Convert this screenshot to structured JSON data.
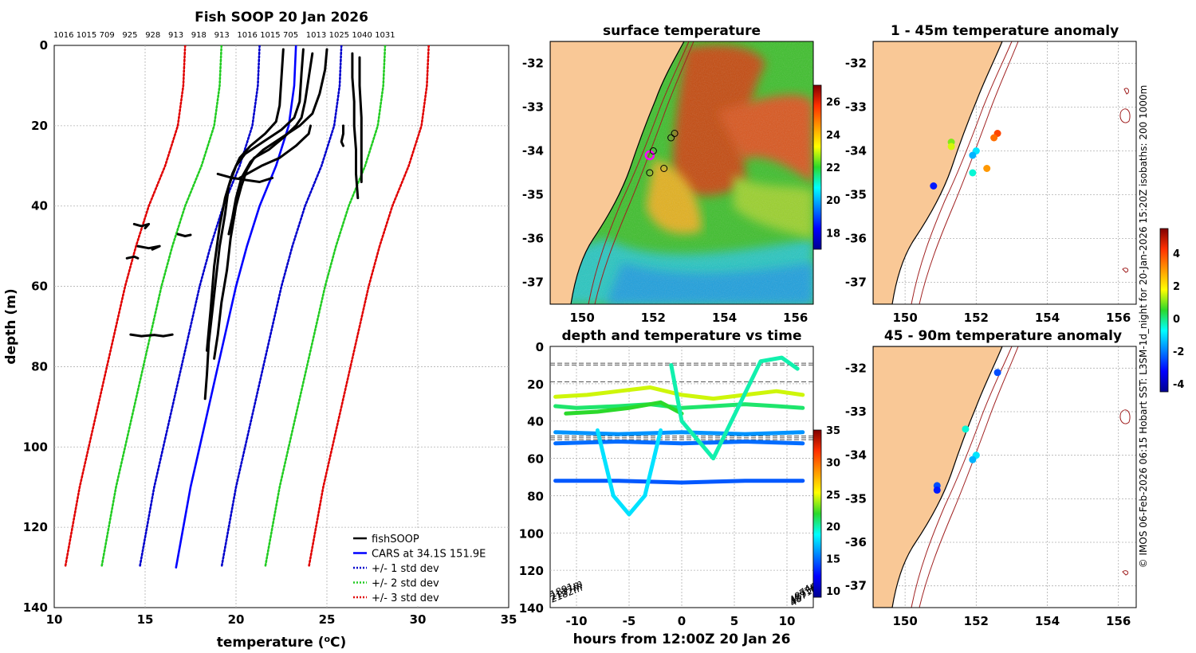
{
  "figure_credit": "© IMOS 06-Feb-2026 06:15 Hobart SST: L3SM-1d_night for 20-Jan-2026 15:20Z isobaths: 200  1000m",
  "colors": {
    "land": "#f9c896",
    "fishsoop": "#000000",
    "cars": "#0000ff",
    "std1": "#0000cc",
    "std2": "#22cc22",
    "std3": "#e00000",
    "isobath": "#a02020",
    "grid": "#b0b0b0"
  },
  "chart_data": [
    {
      "id": "profile",
      "type": "line",
      "title": "Fish SOOP 20 Jan 2026",
      "top_labels": [
        "1016",
        "1015",
        "709",
        "925",
        "928",
        "913",
        "918",
        "913",
        "1016",
        "1015",
        "705",
        "1013",
        "1025",
        "1040",
        "1031"
      ],
      "xlabel": "temperature (°C)",
      "xlabel_main": "temperature (",
      "xlabel_sup": "o",
      "xlabel_end": "C)",
      "ylabel": "depth (m)",
      "xlim": [
        10,
        35
      ],
      "ylim": [
        140,
        0
      ],
      "xticks": [
        10,
        15,
        20,
        25,
        30,
        35
      ],
      "yticks": [
        0,
        20,
        40,
        60,
        80,
        100,
        120,
        140
      ],
      "legend_position": "bottom-right",
      "legend": [
        {
          "label": "fishSOOP",
          "style": "solid-black"
        },
        {
          "label": "CARS at 34.1S 151.9E",
          "style": "solid-blue"
        },
        {
          "label": "+/- 1 std dev",
          "style": "dotted-blue"
        },
        {
          "label": "+/- 2 std dev",
          "style": "dotted-green"
        },
        {
          "label": "+/- 3 std dev",
          "style": "dotted-red"
        }
      ],
      "cars_mean": {
        "depth": [
          0,
          10,
          20,
          30,
          40,
          50,
          60,
          70,
          80,
          90,
          100,
          110,
          120,
          130
        ],
        "temp": [
          23.3,
          23.2,
          22.9,
          22.2,
          21.3,
          20.6,
          20.0,
          19.5,
          19.0,
          18.5,
          18.0,
          17.5,
          17.1,
          16.7
        ]
      },
      "std_offsets": {
        "sd1": {
          "minus": 2.0,
          "plus": 2.5
        },
        "sd2": {
          "minus": 4.1,
          "plus": 4.9
        },
        "sd3": {
          "minus": 6.1,
          "plus": 7.3
        }
      },
      "series": [
        {
          "name": "profile-a",
          "x": [
            24.2,
            24.0,
            23.8,
            23.6,
            23.3,
            22.6,
            21.8,
            21.0,
            20.6,
            20.3,
            20.0,
            19.7,
            19.5,
            19.2,
            19.0,
            18.8
          ],
          "y": [
            2,
            8,
            14,
            18,
            20,
            23,
            26,
            28,
            31,
            35,
            40,
            48,
            56,
            64,
            72,
            78
          ]
        },
        {
          "name": "profile-b",
          "x": [
            23.7,
            23.6,
            23.5,
            23.2,
            22.5,
            21.5,
            20.5,
            20.0,
            19.6,
            19.4,
            19.1,
            18.9,
            18.7,
            18.5,
            18.4,
            18.3
          ],
          "y": [
            1,
            7,
            14,
            18,
            21,
            24,
            27,
            30,
            35,
            42,
            50,
            58,
            66,
            74,
            82,
            88
          ]
        },
        {
          "name": "profile-c",
          "x": [
            22.6,
            22.5,
            22.4,
            22.2,
            21.6,
            20.8,
            20.2,
            19.8,
            19.4,
            19.1,
            18.8,
            18.6,
            18.4
          ],
          "y": [
            1,
            8,
            15,
            19,
            22,
            25,
            28,
            32,
            38,
            45,
            55,
            66,
            76
          ]
        },
        {
          "name": "profile-d",
          "x": [
            25.0,
            24.9,
            24.6,
            24.2,
            23.5,
            22.5,
            21.5,
            20.8,
            20.3,
            20.0,
            19.8,
            19.6
          ],
          "y": [
            1,
            6,
            12,
            17,
            20,
            23,
            26,
            29,
            33,
            38,
            43,
            47
          ]
        },
        {
          "name": "profile-e",
          "x": [
            20.2,
            20.6,
            21.4,
            22.4,
            23.3,
            24.0,
            24.1
          ],
          "y": [
            33,
            32,
            30,
            28,
            25,
            22,
            20
          ]
        },
        {
          "name": "profile-f",
          "x": [
            19.0,
            19.8,
            20.5,
            21.3,
            22.0
          ],
          "y": [
            32,
            33,
            33.5,
            34,
            33
          ]
        },
        {
          "name": "profile-g",
          "x": [
            26.4,
            26.4,
            26.5,
            26.5,
            26.6,
            26.6,
            26.7
          ],
          "y": [
            2,
            8,
            14,
            20,
            26,
            32,
            38
          ]
        },
        {
          "name": "profile-h",
          "x": [
            26.8,
            26.8,
            26.9,
            26.9,
            26.9
          ],
          "y": [
            3,
            10,
            18,
            26,
            34
          ]
        },
        {
          "name": "profile-i",
          "x": [
            25.9,
            25.9,
            25.8,
            25.9
          ],
          "y": [
            20,
            22,
            24,
            25
          ]
        },
        {
          "name": "blob-1",
          "x": [
            14.4,
            14.8,
            15.2,
            15.0
          ],
          "y": [
            44.5,
            45,
            44.5,
            45.5
          ]
        },
        {
          "name": "blob-2",
          "x": [
            14.6,
            15.2,
            15.8,
            15.4
          ],
          "y": [
            50,
            50.5,
            50,
            50.8
          ]
        },
        {
          "name": "blob-3",
          "x": [
            14.0,
            14.4,
            14.6
          ],
          "y": [
            53,
            52.6,
            53
          ]
        },
        {
          "name": "blob-4",
          "x": [
            16.8,
            17.2,
            17.5
          ],
          "y": [
            47,
            47.5,
            47.2
          ]
        },
        {
          "name": "blob-5",
          "x": [
            14.2,
            14.8,
            15.5,
            16.0,
            16.5
          ],
          "y": [
            72,
            72.4,
            72.1,
            72.4,
            72
          ]
        }
      ]
    },
    {
      "id": "sst-map",
      "type": "heatmap",
      "title": "surface temperature",
      "xticks": [
        150,
        152,
        154,
        156
      ],
      "yticks": [
        -32,
        -33,
        -34,
        -35,
        -36,
        -37
      ],
      "xlim": [
        149.1,
        156.5
      ],
      "ylim": [
        -37.5,
        -31.5
      ],
      "colorbar_ticks": [
        26,
        24,
        22,
        20,
        18
      ],
      "colorbar_range": [
        17,
        27
      ],
      "warm_core_center": [
        153.6,
        -33.6
      ],
      "cold_band_lat": -36.9,
      "station_markers": [
        {
          "lon": 151.9,
          "lat": -34.1,
          "ring": "magenta"
        },
        {
          "lon": 152.0,
          "lat": -34.0,
          "ring": "black"
        },
        {
          "lon": 151.9,
          "lat": -34.5,
          "ring": "black"
        },
        {
          "lon": 152.3,
          "lat": -34.4,
          "ring": "black"
        },
        {
          "lon": 152.6,
          "lat": -33.6,
          "ring": "black"
        },
        {
          "lon": 152.5,
          "lat": -33.7,
          "ring": "black"
        }
      ]
    },
    {
      "id": "depth-time",
      "type": "scatter",
      "title": "depth and temperature vs time",
      "xlabel": "hours from 12:00Z 20 Jan 26",
      "xlim": [
        -12.5,
        12.5
      ],
      "ylim": [
        140,
        0
      ],
      "xticks": [
        -10,
        -5,
        0,
        5,
        10
      ],
      "yticks": [
        0,
        20,
        40,
        60,
        80,
        100,
        120,
        140
      ],
      "colorbar_ticks": [
        35,
        30,
        25,
        20,
        15,
        10
      ],
      "colorbar_range": [
        9,
        35
      ],
      "reference_depths": [
        9,
        10,
        19,
        48,
        49,
        50
      ],
      "corner_labels": [
        "2182m",
        "2137m",
        "1891m",
        "4874m",
        "4893m",
        "4871m"
      ],
      "tracks": [
        {
          "name": "track-shallow",
          "temp": 24.5,
          "hours": [
            -12,
            -9,
            -6,
            -3,
            0,
            3,
            6,
            9,
            11.5
          ],
          "depth": [
            27,
            26,
            24,
            22,
            26,
            28,
            26,
            24,
            26
          ]
        },
        {
          "name": "track-mixed",
          "temp": 21,
          "hours": [
            -12,
            -10,
            -6,
            -3,
            0,
            3,
            6,
            9,
            11.5
          ],
          "depth": [
            32,
            33,
            32,
            31,
            33,
            32,
            31,
            32,
            33
          ]
        },
        {
          "name": "track-thermo",
          "temp": 22,
          "hours": [
            -11,
            -8,
            -5,
            -2,
            0
          ],
          "depth": [
            36,
            35,
            33,
            30,
            36
          ]
        },
        {
          "name": "track-40m",
          "temp": 16,
          "hours": [
            -12,
            -6,
            0,
            6,
            11.5
          ],
          "depth": [
            46,
            47,
            46,
            47,
            46
          ]
        },
        {
          "name": "track-50m",
          "temp": 15,
          "hours": [
            -12,
            -6,
            0,
            6,
            11.5
          ],
          "depth": [
            52,
            51,
            52,
            51,
            52
          ]
        },
        {
          "name": "track-72m",
          "temp": 14.5,
          "hours": [
            -12,
            -6,
            0,
            6,
            11.5
          ],
          "depth": [
            72,
            72,
            73,
            72,
            72
          ]
        },
        {
          "name": "track-dip",
          "temp": 18,
          "hours": [
            -8,
            -6.5,
            -5,
            -3.5,
            -2
          ],
          "depth": [
            45,
            80,
            90,
            80,
            45
          ]
        },
        {
          "name": "track-spikes",
          "temp": 20,
          "hours": [
            -1,
            0,
            3,
            7.5,
            9.5,
            11
          ],
          "depth": [
            10,
            40,
            60,
            8,
            6,
            12
          ]
        }
      ]
    },
    {
      "id": "anomaly-1-45",
      "type": "scatter",
      "title": "1 - 45m temperature anomaly",
      "xticks": [
        150,
        152,
        154,
        156
      ],
      "yticks": [
        -32,
        -33,
        -34,
        -35,
        -36,
        -37
      ],
      "xlim": [
        149.1,
        156.5
      ],
      "ylim": [
        -37.5,
        -31.5
      ],
      "points": [
        {
          "lon": 152.6,
          "lat": -33.6,
          "anomaly": 4.0
        },
        {
          "lon": 152.5,
          "lat": -33.7,
          "anomaly": 3.5
        },
        {
          "lon": 151.3,
          "lat": -33.8,
          "anomaly": 1.0
        },
        {
          "lon": 151.3,
          "lat": -33.9,
          "anomaly": 1.5
        },
        {
          "lon": 152.0,
          "lat": -34.0,
          "anomaly": -1.0
        },
        {
          "lon": 151.9,
          "lat": -34.1,
          "anomaly": -1.5
        },
        {
          "lon": 152.3,
          "lat": -34.4,
          "anomaly": 3.0
        },
        {
          "lon": 151.9,
          "lat": -34.5,
          "anomaly": -0.5
        },
        {
          "lon": 150.8,
          "lat": -34.8,
          "anomaly": -3.0
        }
      ]
    },
    {
      "id": "anomaly-45-90",
      "type": "scatter",
      "title": "45 - 90m temperature anomaly",
      "xticks": [
        150,
        152,
        154,
        156
      ],
      "yticks": [
        -32,
        -33,
        -34,
        -35,
        -36,
        -37
      ],
      "xlim": [
        149.1,
        156.5
      ],
      "ylim": [
        -37.5,
        -31.5
      ],
      "colorbar_ticks": [
        4,
        2,
        0,
        -2,
        -4
      ],
      "colorbar_range": [
        -4.5,
        5.5
      ],
      "points": [
        {
          "lon": 152.6,
          "lat": -32.1,
          "anomaly": -2.5
        },
        {
          "lon": 151.7,
          "lat": -33.4,
          "anomaly": -0.5
        },
        {
          "lon": 152.0,
          "lat": -34.0,
          "anomaly": -1.0
        },
        {
          "lon": 151.9,
          "lat": -34.1,
          "anomaly": -1.5
        },
        {
          "lon": 150.9,
          "lat": -34.7,
          "anomaly": -2.5
        },
        {
          "lon": 150.9,
          "lat": -34.8,
          "anomaly": -3.0
        }
      ]
    }
  ]
}
